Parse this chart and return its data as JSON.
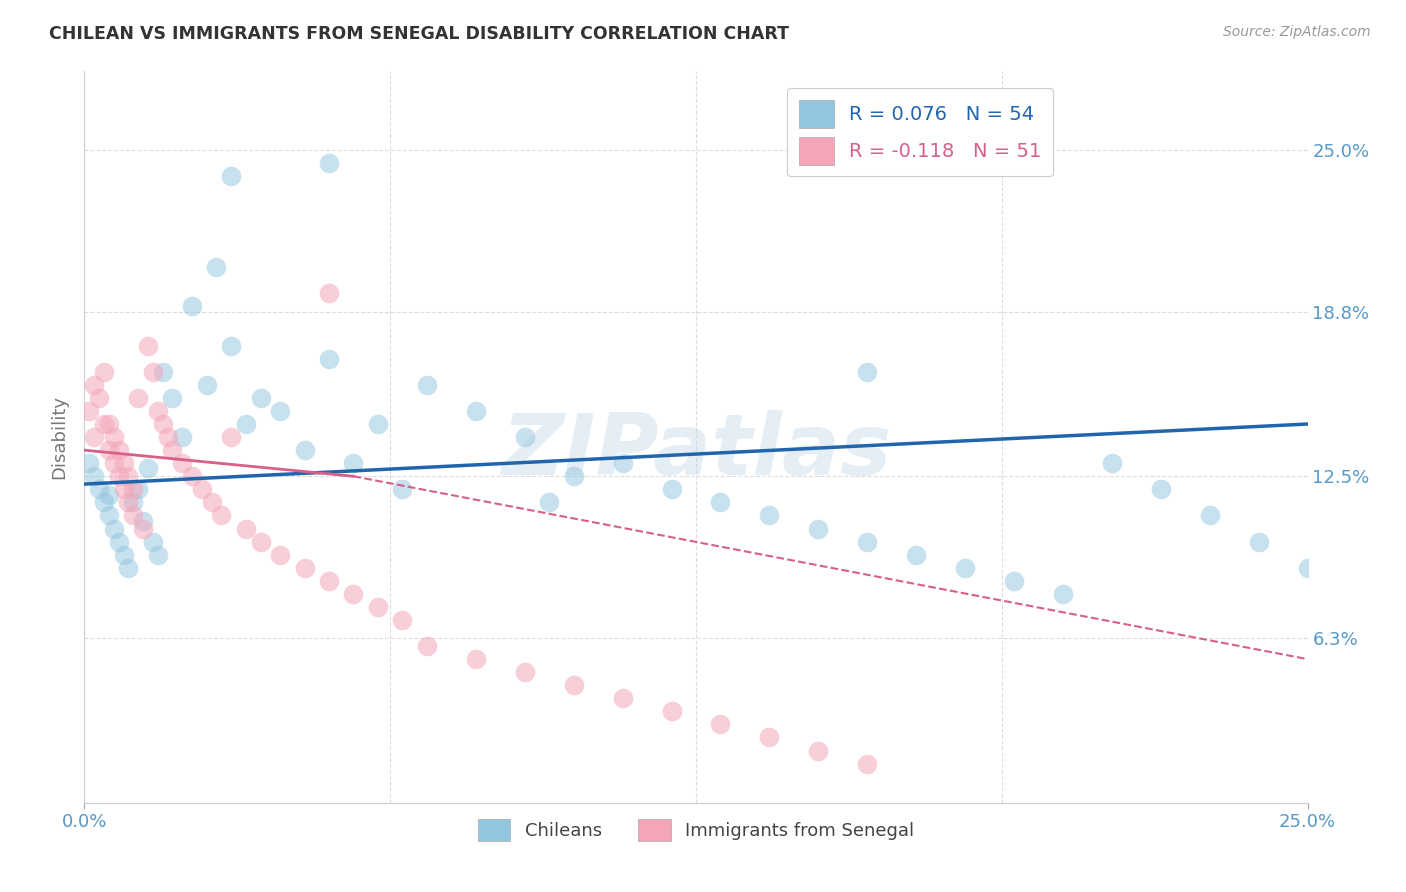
{
  "title": "CHILEAN VS IMMIGRANTS FROM SENEGAL DISABILITY CORRELATION CHART",
  "source": "Source: ZipAtlas.com",
  "ylabel": "Disability",
  "ytick_labels": [
    "6.3%",
    "12.5%",
    "18.8%",
    "25.0%"
  ],
  "ytick_values": [
    0.063,
    0.125,
    0.188,
    0.25
  ],
  "xmin": 0.0,
  "xmax": 0.25,
  "ymin": 0.0,
  "ymax": 0.28,
  "watermark": "ZIPatlas",
  "chilean_color": "#92c5de",
  "senegal_color": "#f4a6b8",
  "chilean_line_color": "#2166ac",
  "senegal_line_color": "#d6608a",
  "R_chilean": 0.076,
  "N_chilean": 54,
  "R_senegal": -0.118,
  "N_senegal": 51,
  "chilean_x": [
    0.001,
    0.002,
    0.003,
    0.004,
    0.005,
    0.005,
    0.006,
    0.007,
    0.008,
    0.009,
    0.01,
    0.011,
    0.012,
    0.013,
    0.014,
    0.015,
    0.016,
    0.018,
    0.02,
    0.022,
    0.025,
    0.027,
    0.03,
    0.033,
    0.036,
    0.04,
    0.045,
    0.05,
    0.055,
    0.06,
    0.065,
    0.07,
    0.08,
    0.09,
    0.1,
    0.11,
    0.12,
    0.13,
    0.14,
    0.15,
    0.16,
    0.17,
    0.18,
    0.19,
    0.2,
    0.21,
    0.22,
    0.23,
    0.24,
    0.25,
    0.095,
    0.16,
    0.03,
    0.05
  ],
  "chilean_y": [
    0.13,
    0.125,
    0.12,
    0.115,
    0.11,
    0.118,
    0.105,
    0.1,
    0.095,
    0.09,
    0.115,
    0.12,
    0.108,
    0.128,
    0.1,
    0.095,
    0.165,
    0.155,
    0.14,
    0.19,
    0.16,
    0.205,
    0.175,
    0.145,
    0.155,
    0.15,
    0.135,
    0.17,
    0.13,
    0.145,
    0.12,
    0.16,
    0.15,
    0.14,
    0.125,
    0.13,
    0.12,
    0.115,
    0.11,
    0.105,
    0.1,
    0.095,
    0.09,
    0.085,
    0.08,
    0.13,
    0.12,
    0.11,
    0.1,
    0.09,
    0.115,
    0.165,
    0.24,
    0.245
  ],
  "senegal_x": [
    0.001,
    0.002,
    0.002,
    0.003,
    0.004,
    0.004,
    0.005,
    0.005,
    0.006,
    0.006,
    0.007,
    0.007,
    0.008,
    0.008,
    0.009,
    0.009,
    0.01,
    0.01,
    0.011,
    0.012,
    0.013,
    0.014,
    0.015,
    0.016,
    0.017,
    0.018,
    0.02,
    0.022,
    0.024,
    0.026,
    0.028,
    0.03,
    0.033,
    0.036,
    0.04,
    0.045,
    0.05,
    0.055,
    0.06,
    0.065,
    0.07,
    0.08,
    0.09,
    0.1,
    0.11,
    0.12,
    0.13,
    0.14,
    0.15,
    0.16,
    0.05
  ],
  "senegal_y": [
    0.15,
    0.14,
    0.16,
    0.155,
    0.145,
    0.165,
    0.135,
    0.145,
    0.13,
    0.14,
    0.125,
    0.135,
    0.12,
    0.13,
    0.115,
    0.125,
    0.11,
    0.12,
    0.155,
    0.105,
    0.175,
    0.165,
    0.15,
    0.145,
    0.14,
    0.135,
    0.13,
    0.125,
    0.12,
    0.115,
    0.11,
    0.14,
    0.105,
    0.1,
    0.095,
    0.09,
    0.085,
    0.08,
    0.075,
    0.07,
    0.06,
    0.055,
    0.05,
    0.045,
    0.04,
    0.035,
    0.03,
    0.025,
    0.02,
    0.015,
    0.195
  ]
}
